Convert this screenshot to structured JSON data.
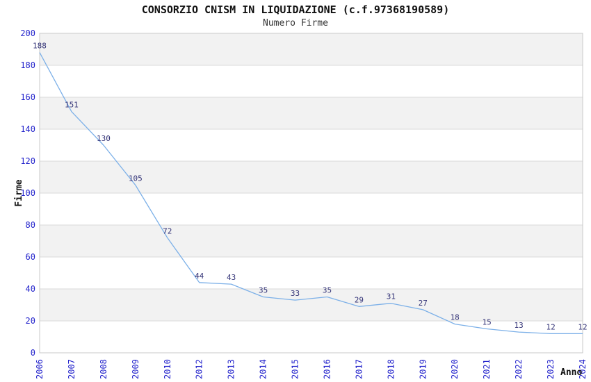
{
  "chart_data": {
    "type": "line",
    "title": "CONSORZIO CNISM IN LIQUIDAZIONE (c.f.97368190589)",
    "subtitle": "Numero Firme",
    "xlabel": "Anno",
    "ylabel": "Firme",
    "categories": [
      "2006",
      "2007",
      "2008",
      "2009",
      "2010",
      "2012",
      "2013",
      "2014",
      "2015",
      "2016",
      "2017",
      "2018",
      "2019",
      "2020",
      "2021",
      "2022",
      "2023",
      "2024"
    ],
    "values": [
      188,
      151,
      130,
      105,
      72,
      44,
      43,
      35,
      33,
      35,
      29,
      31,
      27,
      18,
      15,
      13,
      12,
      12
    ],
    "point_labels": [
      "188",
      "151",
      "130",
      "105",
      "72",
      "44",
      "43",
      "35",
      "33",
      "35",
      "29",
      "31",
      "27",
      "18",
      "15",
      "13",
      "12",
      "12"
    ],
    "ylim": [
      0,
      200
    ],
    "ytick_step": 20,
    "yticks": [
      0,
      20,
      40,
      60,
      80,
      100,
      120,
      140,
      160,
      180,
      200
    ],
    "grid": "horizontal",
    "legend": "none",
    "alternating_bands": true,
    "markers": "none",
    "colors": {
      "line": "#7cb0e8",
      "tick_label": "#2424cc",
      "point_label": "#333377",
      "band": "#f2f2f2",
      "grid": "#d9d9d9",
      "border": "#c9c9c9",
      "title": "#111111",
      "subtitle": "#333333",
      "background": "#ffffff"
    }
  }
}
